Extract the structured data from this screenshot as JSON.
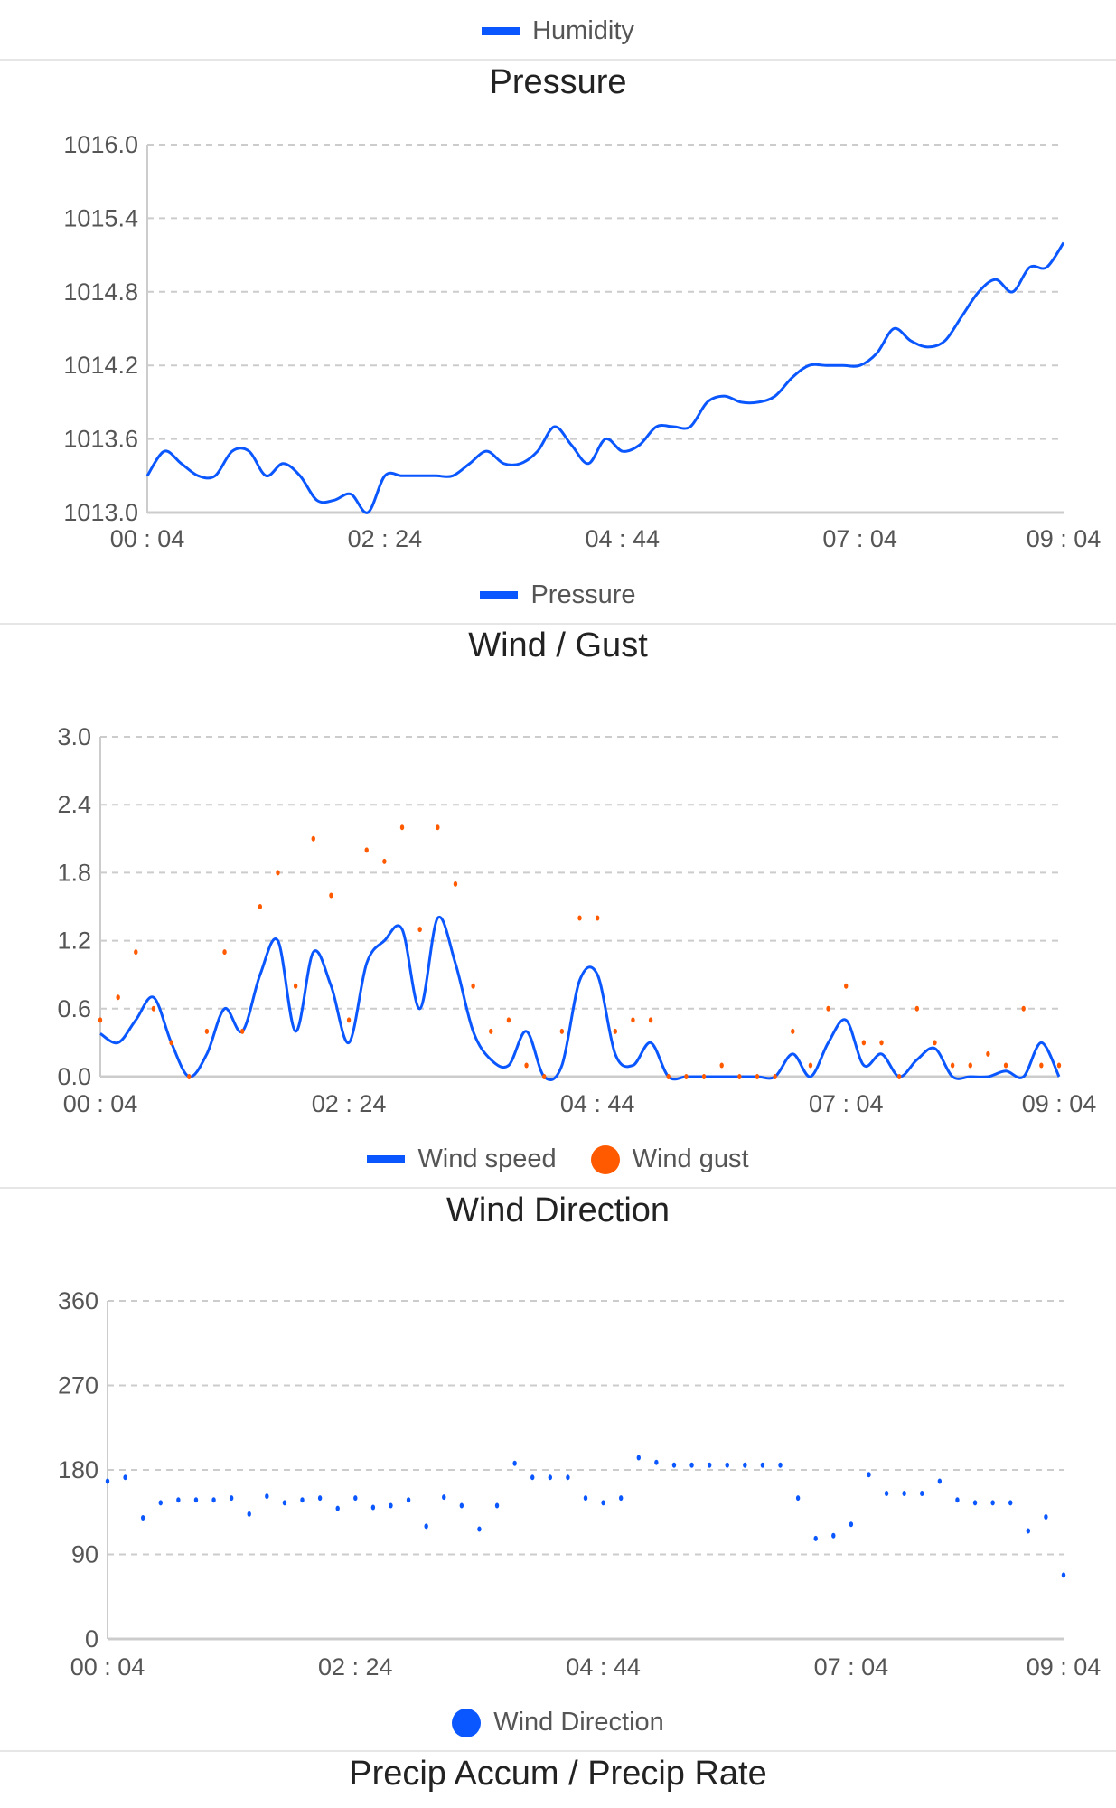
{
  "colors": {
    "primary": "#0b57ff",
    "gust": "#ff5a00",
    "grid": "#cccccc",
    "axis": "#cccccc"
  },
  "top_legend": {
    "label": "Humidity"
  },
  "footer_title": "Precip Accum / Precip Rate",
  "chart_data": [
    {
      "type": "line",
      "title": "Pressure",
      "xlabel": "",
      "ylabel": "",
      "x_unit": "minutes after 00:04",
      "x": [
        0,
        10,
        20,
        30,
        40,
        50,
        60,
        70,
        80,
        90,
        100,
        110,
        120,
        130,
        140,
        150,
        160,
        170,
        180,
        190,
        200,
        210,
        220,
        230,
        240,
        250,
        260,
        270,
        280,
        290,
        300,
        310,
        320,
        330,
        340,
        350,
        360,
        370,
        380,
        390,
        400,
        410,
        420,
        430,
        440,
        450,
        460,
        470,
        480,
        490,
        500,
        510,
        520,
        530,
        540
      ],
      "series": [
        {
          "name": "Pressure",
          "values": [
            1013.3,
            1013.5,
            1013.4,
            1013.3,
            1013.3,
            1013.5,
            1013.5,
            1013.3,
            1013.4,
            1013.3,
            1013.1,
            1013.1,
            1013.15,
            1013.0,
            1013.3,
            1013.3,
            1013.3,
            1013.3,
            1013.3,
            1013.4,
            1013.5,
            1013.4,
            1013.4,
            1013.5,
            1013.7,
            1013.55,
            1013.4,
            1013.6,
            1013.5,
            1013.55,
            1013.7,
            1013.7,
            1013.7,
            1013.9,
            1013.95,
            1013.9,
            1013.9,
            1013.95,
            1014.1,
            1014.2,
            1014.2,
            1014.2,
            1014.2,
            1014.3,
            1014.5,
            1014.4,
            1014.35,
            1014.4,
            1014.6,
            1014.8,
            1014.9,
            1014.8,
            1015.0,
            1015.0,
            1015.2
          ]
        }
      ],
      "ylim": [
        1013.0,
        1016.0
      ],
      "yticks": [
        "1013.0",
        "1013.6",
        "1014.2",
        "1014.8",
        "1015.4",
        "1016.0"
      ],
      "xticks": [
        {
          "label": "00 : 04",
          "value": 0
        },
        {
          "label": "02 : 24",
          "value": 140
        },
        {
          "label": "04 : 44",
          "value": 280
        },
        {
          "label": "07 : 04",
          "value": 420
        },
        {
          "label": "09 : 04",
          "value": 540
        }
      ],
      "xlim": [
        0,
        540
      ],
      "grid": true,
      "legend": [
        {
          "label": "Pressure",
          "style": "line"
        }
      ],
      "legend_placement": "bottom"
    },
    {
      "type": "line",
      "title": "Wind / Gust",
      "xlabel": "",
      "ylabel": "",
      "x_unit": "minutes after 00:04",
      "x": [
        0,
        10,
        20,
        30,
        40,
        50,
        60,
        70,
        80,
        90,
        100,
        110,
        120,
        130,
        140,
        150,
        160,
        170,
        180,
        190,
        200,
        210,
        220,
        230,
        240,
        250,
        260,
        270,
        280,
        290,
        300,
        310,
        320,
        330,
        340,
        350,
        360,
        370,
        380,
        390,
        400,
        410,
        420,
        430,
        440,
        450,
        460,
        470,
        480,
        490,
        500,
        510,
        520,
        530,
        540
      ],
      "series": [
        {
          "name": "Wind speed",
          "style": "line",
          "values": [
            0.38,
            0.3,
            0.5,
            0.7,
            0.3,
            0.0,
            0.2,
            0.6,
            0.4,
            0.9,
            1.2,
            0.4,
            1.1,
            0.8,
            0.3,
            1.0,
            1.2,
            1.3,
            0.6,
            1.4,
            1.0,
            0.4,
            0.15,
            0.1,
            0.4,
            0.0,
            0.1,
            0.85,
            0.9,
            0.2,
            0.1,
            0.3,
            0.0,
            0.0,
            0.0,
            0.0,
            0.0,
            0.0,
            0.0,
            0.2,
            0.0,
            0.3,
            0.5,
            0.1,
            0.2,
            0.0,
            0.15,
            0.25,
            0.0,
            0.0,
            0.0,
            0.05,
            0.0,
            0.3,
            0.0
          ]
        },
        {
          "name": "Wind gust",
          "style": "scatter",
          "values": [
            0.5,
            0.7,
            1.1,
            0.6,
            0.3,
            0.0,
            0.4,
            1.1,
            0.4,
            1.5,
            1.8,
            0.8,
            2.1,
            1.6,
            0.5,
            2.0,
            1.9,
            2.2,
            1.3,
            2.2,
            1.7,
            0.8,
            0.4,
            0.5,
            0.1,
            0.0,
            0.4,
            1.4,
            1.4,
            0.4,
            0.5,
            0.5,
            0.0,
            0.0,
            0.0,
            0.1,
            0.0,
            0.0,
            0.0,
            0.4,
            0.1,
            0.6,
            0.8,
            0.3,
            0.3,
            0.0,
            0.6,
            0.3,
            0.1,
            0.1,
            0.2,
            0.1,
            0.6,
            0.1,
            0.1
          ]
        }
      ],
      "ylim": [
        0,
        3.0
      ],
      "yticks": [
        "0.0",
        "0.6",
        "1.2",
        "1.8",
        "2.4",
        "3.0"
      ],
      "xticks": [
        {
          "label": "00 : 04",
          "value": 0
        },
        {
          "label": "02 : 24",
          "value": 140
        },
        {
          "label": "04 : 44",
          "value": 280
        },
        {
          "label": "07 : 04",
          "value": 420
        },
        {
          "label": "09 : 04",
          "value": 540
        }
      ],
      "xlim": [
        0,
        540
      ],
      "grid": true,
      "legend": [
        {
          "label": "Wind speed",
          "style": "line"
        },
        {
          "label": "Wind gust",
          "style": "dot"
        }
      ],
      "legend_placement": "bottom"
    },
    {
      "type": "scatter",
      "title": "Wind Direction",
      "xlabel": "",
      "ylabel": "",
      "x_unit": "minutes after 00:04",
      "x": [
        0,
        10,
        20,
        30,
        40,
        50,
        60,
        70,
        80,
        90,
        100,
        110,
        120,
        130,
        140,
        150,
        160,
        170,
        180,
        190,
        200,
        210,
        220,
        230,
        240,
        250,
        260,
        270,
        280,
        290,
        300,
        310,
        320,
        330,
        340,
        350,
        360,
        370,
        380,
        390,
        400,
        410,
        420,
        430,
        440,
        450,
        460,
        470,
        480,
        490,
        500,
        510,
        520,
        530,
        540
      ],
      "series": [
        {
          "name": "Wind Direction",
          "values": [
            168,
            172,
            129,
            145,
            148,
            148,
            148,
            150,
            133,
            152,
            145,
            148,
            150,
            139,
            150,
            140,
            142,
            148,
            120,
            151,
            142,
            117,
            142,
            187,
            172,
            172,
            172,
            150,
            145,
            150,
            193,
            188,
            185,
            185,
            185,
            185,
            185,
            185,
            185,
            150,
            107,
            110,
            122,
            175,
            155,
            155,
            155,
            168,
            148,
            145,
            145,
            145,
            115,
            130,
            68
          ]
        }
      ],
      "ylim": [
        0,
        360
      ],
      "yticks": [
        "0",
        "90",
        "180",
        "270",
        "360"
      ],
      "xticks": [
        {
          "label": "00 : 04",
          "value": 0
        },
        {
          "label": "02 : 24",
          "value": 140
        },
        {
          "label": "04 : 44",
          "value": 280
        },
        {
          "label": "07 : 04",
          "value": 420
        },
        {
          "label": "09 : 04",
          "value": 540
        }
      ],
      "xlim": [
        0,
        540
      ],
      "grid": true,
      "legend": [
        {
          "label": "Wind Direction",
          "style": "dot"
        }
      ],
      "legend_placement": "bottom"
    }
  ]
}
